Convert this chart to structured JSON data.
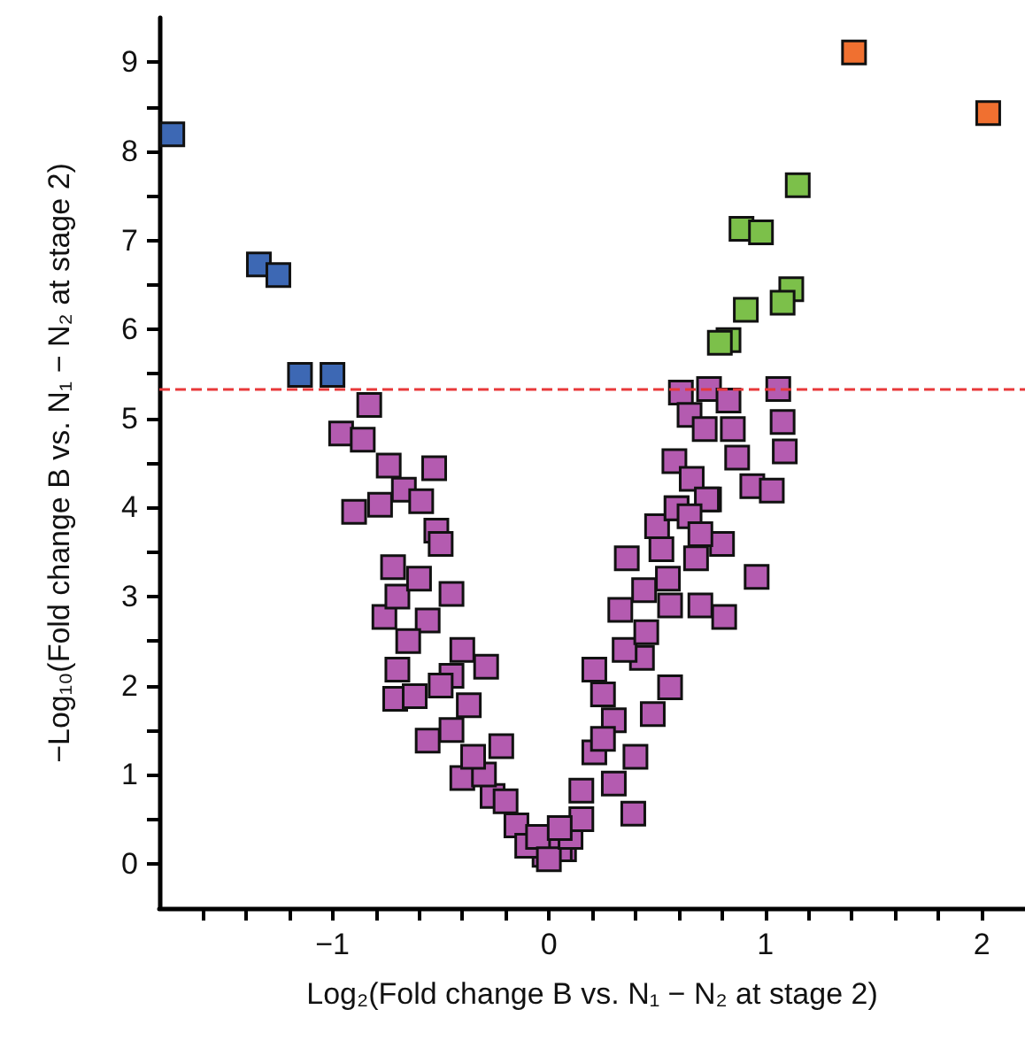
{
  "chart_data": {
    "type": "scatter",
    "xlabel": "Log₂(Fold change B vs. N₁ − N₂ at stage 2)",
    "ylabel": "−Log₁₀(Fold change B vs. N₁ − N₂ at stage 2)",
    "xlim": [
      -1.8,
      2.2
    ],
    "ylim": [
      -0.5,
      9.5
    ],
    "xticks": [
      {
        "value": -1.6,
        "label": null
      },
      {
        "value": -1.4,
        "label": null
      },
      {
        "value": -1.2,
        "label": null
      },
      {
        "value": -1,
        "label": "−1"
      },
      {
        "value": -0.8,
        "label": null
      },
      {
        "value": -0.6,
        "label": null
      },
      {
        "value": -0.4,
        "label": null
      },
      {
        "value": -0.2,
        "label": null
      },
      0,
      {
        "value": 0.2,
        "label": null
      },
      {
        "value": 0.4,
        "label": null
      },
      {
        "value": 0.6,
        "label": null
      },
      {
        "value": 0.8,
        "label": null
      },
      1,
      {
        "value": 1.2,
        "label": null
      },
      {
        "value": 1.4,
        "label": null
      },
      {
        "value": 1.6,
        "label": null
      },
      {
        "value": 1.8,
        "label": null
      },
      2
    ],
    "yticks": [
      0,
      {
        "value": 0.5,
        "label": null
      },
      1,
      {
        "value": 1.5,
        "label": null
      },
      2,
      {
        "value": 2.5,
        "label": null
      },
      3,
      {
        "value": 3.5,
        "label": null
      },
      4,
      {
        "value": 4.5,
        "label": null
      },
      5,
      {
        "value": 5.5,
        "label": null
      },
      6,
      {
        "value": 6.5,
        "label": null
      },
      7,
      {
        "value": 7.5,
        "label": null
      },
      8,
      {
        "value": 8.5,
        "label": null
      },
      9
    ],
    "grid": false,
    "marker": "square",
    "ref_lines": [
      {
        "axis": "y",
        "value": 5.33,
        "color": "#e8393a",
        "line_style": "dashed"
      }
    ],
    "series": [
      {
        "color": "#b45bb0",
        "x": [
          -0.83,
          -0.96,
          -0.86,
          -0.74,
          -0.53,
          -0.67,
          -0.59,
          -0.9,
          -0.78,
          -0.52,
          -0.76,
          -0.72,
          -0.7,
          -0.71,
          -0.5,
          -0.45,
          -0.29,
          -0.37,
          -0.22,
          -0.56,
          -0.15,
          -0.02,
          0.07,
          -0.4,
          -0.26,
          -0.56,
          -0.45,
          -0.62,
          0.05,
          0.15,
          0.21,
          0.3,
          0.39,
          0.48,
          0.56,
          0.21,
          0.43,
          0.33,
          0.56,
          0.81,
          0.7,
          0.36,
          0.52,
          0.68,
          0.8,
          0.96,
          0.5,
          0.59,
          0.74,
          0.44,
          0.61,
          0.74,
          1.06,
          0.83,
          0.65,
          0.72,
          0.85,
          1.08,
          1.09,
          0.87,
          0.58,
          0.66,
          0.94,
          1.03,
          0.73,
          0.59,
          -0.1,
          -0.05,
          0.0,
          0.1,
          -0.3,
          -0.45,
          -0.5,
          -0.65,
          -0.7,
          -0.6,
          -0.4,
          -0.35,
          -0.2,
          0.25,
          0.35,
          0.4,
          0.3,
          0.45,
          0.55,
          0.65,
          0.7,
          0.25,
          0.15,
          0.05
        ],
        "values": [
          5.15,
          4.83,
          4.76,
          4.47,
          4.44,
          4.2,
          4.07,
          3.95,
          4.03,
          3.74,
          2.77,
          3.33,
          2.18,
          1.85,
          3.59,
          3.03,
          2.21,
          1.78,
          1.32,
          1.38,
          0.43,
          0.1,
          0.16,
          0.96,
          0.76,
          2.73,
          2.11,
          1.88,
          0.16,
          0.82,
          1.25,
          1.61,
          0.56,
          1.68,
          1.98,
          2.18,
          2.31,
          2.85,
          2.9,
          2.77,
          2.9,
          3.43,
          3.53,
          3.43,
          3.59,
          3.22,
          3.79,
          3.99,
          4.09,
          3.07,
          5.29,
          5.33,
          5.33,
          5.2,
          5.04,
          4.88,
          4.88,
          4.96,
          4.63,
          4.56,
          4.52,
          4.32,
          4.24,
          4.19,
          4.09,
          3.99,
          0.2,
          0.3,
          0.05,
          0.3,
          1.0,
          1.5,
          2.0,
          2.5,
          3.0,
          3.2,
          2.4,
          1.2,
          0.7,
          1.9,
          2.4,
          1.2,
          0.9,
          2.6,
          3.2,
          3.9,
          3.7,
          1.4,
          0.5,
          0.4
        ]
      },
      {
        "color": "#3d68b4",
        "x": [
          -1.74,
          -1.34,
          -1.25,
          -1.15,
          -1.0
        ],
        "values": [
          8.19,
          6.73,
          6.61,
          5.49,
          5.49
        ]
      },
      {
        "color": "#7cc04a",
        "x": [
          1.15,
          0.89,
          0.98,
          1.12,
          1.08,
          0.91,
          0.83,
          0.79
        ],
        "values": [
          7.62,
          7.13,
          7.09,
          6.45,
          6.3,
          6.22,
          5.88,
          5.85
        ]
      },
      {
        "color": "#f07030",
        "x": [
          1.41,
          2.03
        ],
        "values": [
          9.11,
          8.43
        ]
      }
    ]
  }
}
